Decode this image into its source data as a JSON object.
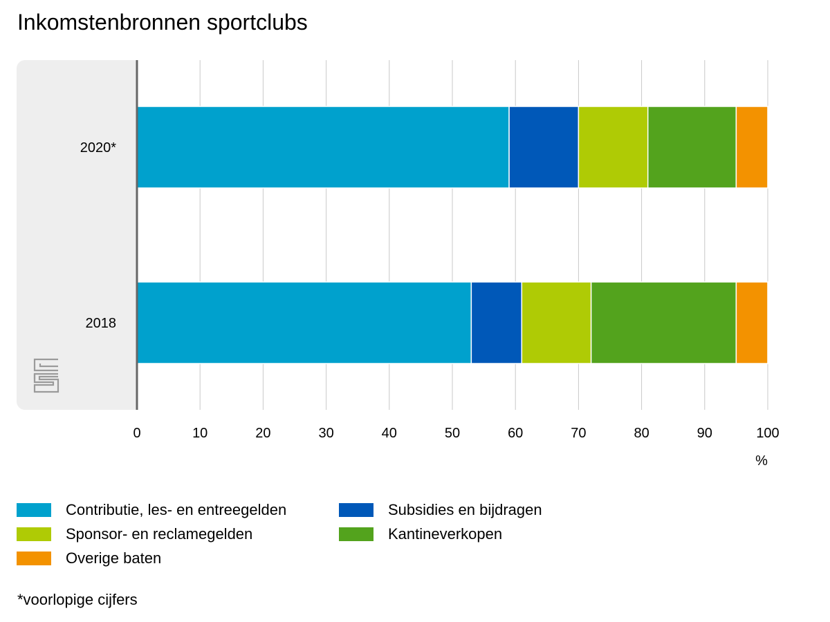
{
  "chart_data": {
    "type": "bar",
    "orientation": "horizontal",
    "stacked": true,
    "title": "Inkomstenbronnen sportclubs",
    "xlabel": "%",
    "ylabel": "",
    "xlim": [
      0,
      100
    ],
    "xticks": [
      "0",
      "10",
      "20",
      "30",
      "40",
      "50",
      "60",
      "70",
      "80",
      "90",
      "100"
    ],
    "categories": [
      "2020*",
      "2018"
    ],
    "grid": true,
    "legend_position": "bottom",
    "series": [
      {
        "name": "Contributie, les- en entreegelden",
        "color": "#00A1CD",
        "values": [
          59,
          53
        ]
      },
      {
        "name": "Subsidies en bijdragen",
        "color": "#0058B8",
        "values": [
          11,
          8
        ]
      },
      {
        "name": "Sponsor- en reclamegelden",
        "color": "#AFCB05",
        "values": [
          11,
          11
        ]
      },
      {
        "name": "Kantineverkopen",
        "color": "#53A31D",
        "values": [
          14,
          23
        ]
      },
      {
        "name": "Overige baten",
        "color": "#F39200",
        "values": [
          5,
          5
        ]
      }
    ],
    "footnote": "*voorlopige cijfers"
  },
  "logo": {
    "icon": "cbs-logo-icon",
    "text": "cbs"
  }
}
